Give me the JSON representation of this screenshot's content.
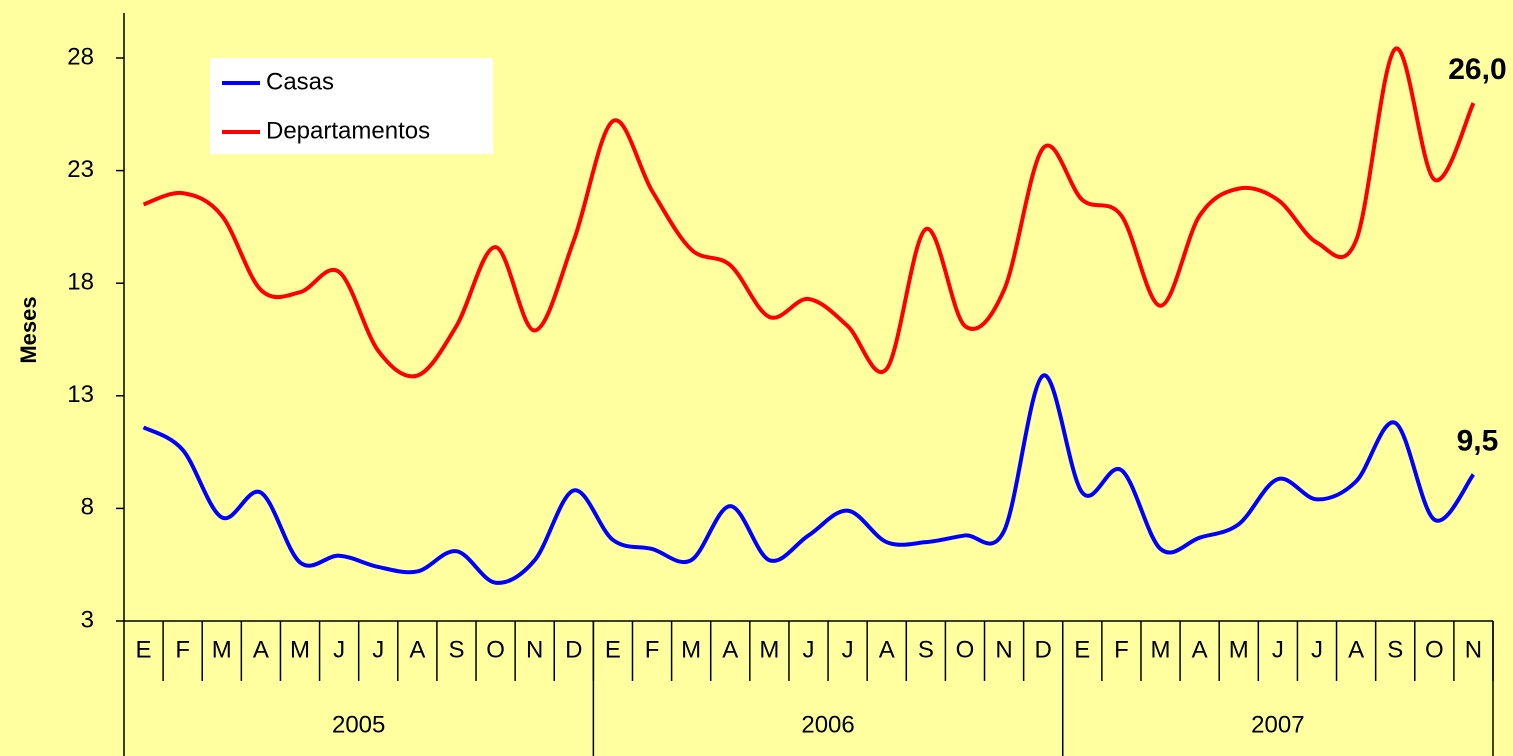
{
  "chart_data": {
    "type": "line",
    "y_axis_label": "Meses",
    "categories": [
      "E",
      "F",
      "M",
      "A",
      "M",
      "J",
      "J",
      "A",
      "S",
      "O",
      "N",
      "D",
      "E",
      "F",
      "M",
      "A",
      "M",
      "J",
      "J",
      "A",
      "S",
      "O",
      "N",
      "D",
      "E",
      "F",
      "M",
      "A",
      "M",
      "J",
      "J",
      "A",
      "S",
      "O",
      "N"
    ],
    "category_groups": [
      {
        "label": "2005",
        "count": 12
      },
      {
        "label": "2006",
        "count": 12
      },
      {
        "label": "2007",
        "count": 11
      }
    ],
    "series": [
      {
        "name": "Casas",
        "color": "#0000ff",
        "values": [
          11.6,
          10.6,
          7.6,
          8.7,
          5.6,
          5.9,
          5.4,
          5.2,
          6.1,
          4.7,
          5.7,
          8.8,
          6.6,
          6.2,
          5.7,
          8.1,
          5.7,
          6.8,
          7.9,
          6.5,
          6.5,
          6.8,
          7.0,
          13.9,
          8.7,
          9.7,
          6.2,
          6.7,
          7.3,
          9.3,
          8.4,
          9.2,
          11.8,
          7.5,
          9.5
        ],
        "last_value_label": "9,5"
      },
      {
        "name": "Departamentos",
        "color": "#ff0000",
        "values": [
          21.5,
          22.0,
          21.0,
          17.7,
          17.6,
          18.5,
          15.0,
          13.9,
          16.1,
          19.6,
          15.9,
          19.9,
          25.2,
          22.1,
          19.5,
          18.8,
          16.5,
          17.3,
          16.1,
          14.2,
          20.4,
          16.1,
          17.7,
          24.0,
          21.7,
          21.0,
          17.0,
          21.0,
          22.2,
          21.7,
          19.8,
          19.9,
          28.4,
          22.6,
          26.0
        ],
        "last_value_label": "26,0"
      }
    ],
    "ylim": [
      3,
      30
    ],
    "yticks": [
      3,
      8,
      13,
      18,
      23,
      28
    ],
    "grid": false,
    "legend": "top-left"
  }
}
